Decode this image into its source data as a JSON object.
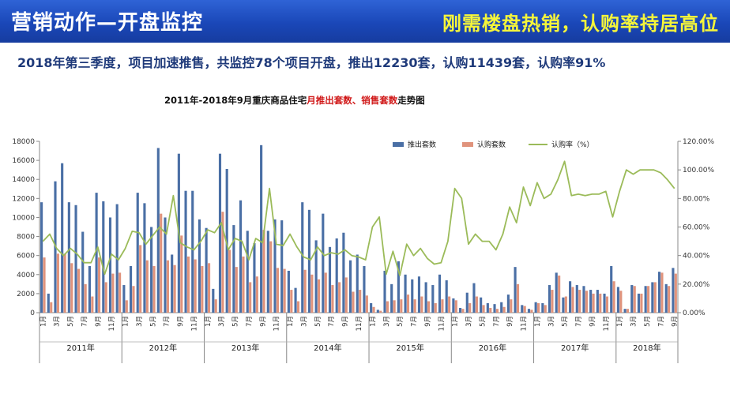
{
  "header": {
    "title": "营销动作—开盘监控",
    "slogan": "刚需楼盘热销，认购率持居高位"
  },
  "summary": "2018年第三季度，项目加速推售，共监控78个项目开盘，推出12230套，认购11439套，认购率91%",
  "chart_title": {
    "part1": "2011年-2018年9月重庆商品住宅",
    "part2": "月推出套数、销售套数",
    "part3": "走势图"
  },
  "colors": {
    "header_bg": "#1a47b8",
    "slogan": "#f5f53a",
    "supply_bar": "#4a6fa5",
    "sales_bar": "#e0937c",
    "rate_line": "#9bbb59",
    "title_red": "#d01818"
  },
  "chart_data": {
    "type": "bar+line",
    "legend": [
      "推出套数",
      "认购套数",
      "认购率（%）"
    ],
    "legend_position": "top-right",
    "grid": false,
    "y_left": {
      "min": 0,
      "max": 18000,
      "ticks": [
        "0",
        "2000",
        "4000",
        "6000",
        "8000",
        "10000",
        "12000",
        "14000",
        "16000",
        "18000"
      ]
    },
    "y_right": {
      "min": 0,
      "max": 1.2,
      "ticks": [
        "0.00%",
        "20.00%",
        "40.00%",
        "60.00%",
        "80.00%",
        "100.00%",
        "120.00%"
      ]
    },
    "month_labels": [
      "1月",
      "3月",
      "5月",
      "7月",
      "9月",
      "11月"
    ],
    "years": [
      "2011年",
      "2012年",
      "2013年",
      "2014年",
      "2015年",
      "2016年",
      "2017年",
      "2018年"
    ],
    "last_year_months": 9,
    "supply": [
      11600,
      2000,
      13800,
      15700,
      11600,
      11300,
      8500,
      4900,
      12600,
      11700,
      10000,
      11400,
      2900,
      4900,
      12600,
      11500,
      9000,
      17300,
      10000,
      6100,
      16700,
      12800,
      12800,
      9800,
      8900,
      2500,
      16700,
      15100,
      9200,
      11800,
      8600,
      7300,
      17600,
      8600,
      9800,
      9700,
      4400,
      2600,
      11600,
      10800,
      7600,
      10400,
      6900,
      7800,
      8400,
      5500,
      6100,
      4900,
      1000,
      300,
      4400,
      3000,
      5400,
      4000,
      3500,
      3800,
      3200,
      2900,
      4000,
      3400,
      1500,
      500,
      2100,
      3100,
      1600,
      1000,
      900,
      1100,
      1900,
      4800,
      800,
      400,
      1100,
      1000,
      2900,
      4200,
      1600,
      3300,
      2900,
      2800,
      2400,
      2400,
      2000,
      4900,
      2700,
      400,
      2900,
      2000,
      2800,
      3200,
      4300,
      3000,
      4700
    ],
    "sales": [
      5800,
      1100,
      6200,
      6200,
      5200,
      4600,
      3000,
      1700,
      5800,
      3200,
      4100,
      4200,
      1300,
      2800,
      7100,
      5500,
      4900,
      10400,
      5500,
      5000,
      8100,
      5900,
      5600,
      4900,
      5200,
      1400,
      10600,
      6600,
      4800,
      5900,
      3200,
      3800,
      8700,
      7500,
      4700,
      4600,
      2400,
      1200,
      4500,
      4000,
      3500,
      4200,
      2900,
      3200,
      3700,
      2200,
      2400,
      1800,
      600,
      200,
      1200,
      1300,
      1400,
      1900,
      1400,
      1700,
      1200,
      1000,
      1400,
      1700,
      1300,
      400,
      1000,
      1700,
      800,
      500,
      400,
      600,
      1400,
      3000,
      700,
      300,
      1000,
      800,
      2400,
      3900,
      1700,
      2700,
      2400,
      2300,
      2000,
      2000,
      1700,
      3300,
      2300,
      400,
      2800,
      2000,
      2800,
      3200,
      4200,
      2800,
      4100
    ],
    "rate": [
      0.5,
      0.55,
      0.45,
      0.4,
      0.45,
      0.41,
      0.35,
      0.35,
      0.46,
      0.27,
      0.41,
      0.37,
      0.45,
      0.57,
      0.56,
      0.48,
      0.54,
      0.6,
      0.55,
      0.82,
      0.49,
      0.46,
      0.44,
      0.5,
      0.58,
      0.56,
      0.63,
      0.44,
      0.52,
      0.5,
      0.37,
      0.52,
      0.49,
      0.87,
      0.48,
      0.47,
      0.55,
      0.46,
      0.39,
      0.37,
      0.46,
      0.4,
      0.42,
      0.41,
      0.44,
      0.4,
      0.39,
      0.37,
      0.6,
      0.67,
      0.27,
      0.43,
      0.26,
      0.48,
      0.4,
      0.45,
      0.38,
      0.34,
      0.35,
      0.5,
      0.87,
      0.8,
      0.48,
      0.55,
      0.5,
      0.5,
      0.44,
      0.55,
      0.74,
      0.63,
      0.88,
      0.75,
      0.91,
      0.8,
      0.83,
      0.93,
      1.06,
      0.82,
      0.83,
      0.82,
      0.83,
      0.83,
      0.85,
      0.67,
      0.85,
      1.0,
      0.97,
      1.0,
      1.0,
      1.0,
      0.98,
      0.93,
      0.87
    ]
  }
}
